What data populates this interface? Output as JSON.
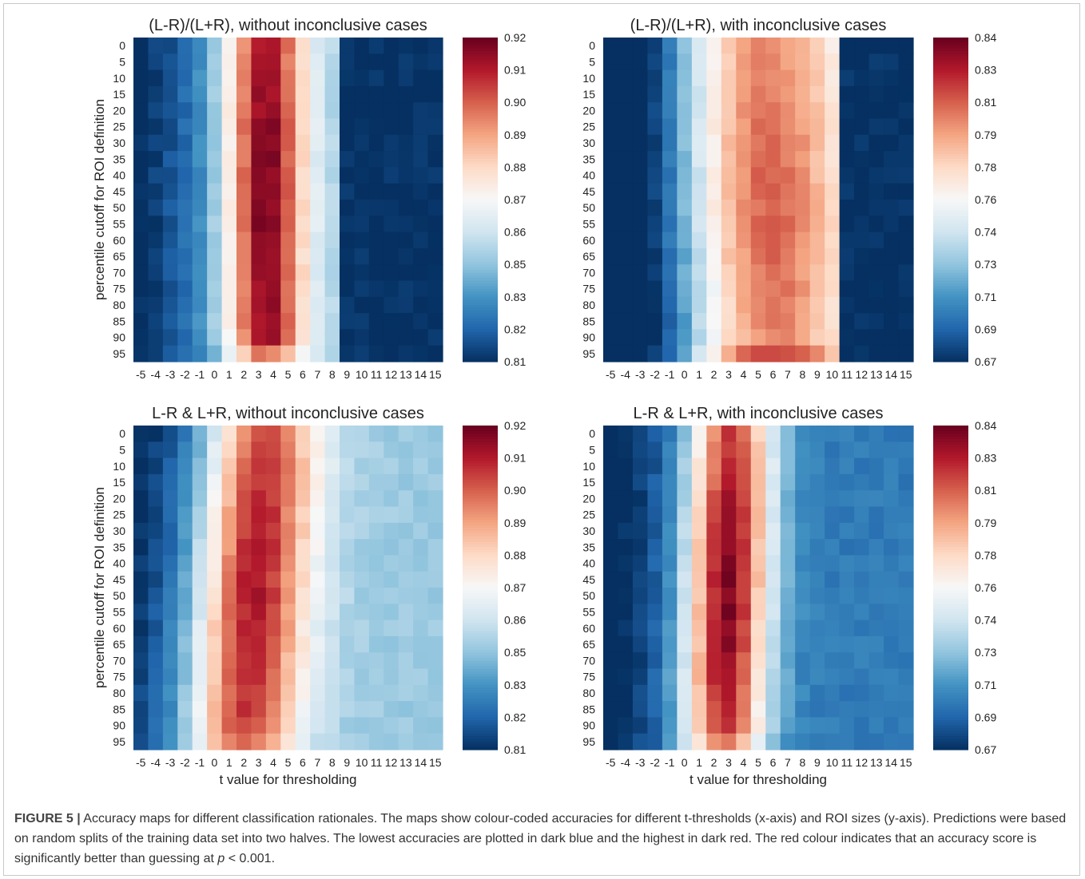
{
  "caption": {
    "label": "FIGURE 5 |",
    "text_before_p": "Accuracy maps for different classification rationales. The maps show colour-coded accuracies for different t-thresholds (x-axis) and ROI sizes (y-axis). Predictions were based on random splits of the training data set into two halves. The lowest accuracies are plotted in dark blue and the highest in dark red. The red colour indicates that an accuracy score is significantly better than guessing at",
    "p_symbol": "p",
    "text_after_p": " < 0.001."
  },
  "colors": {
    "diverging_map": [
      "#053061",
      "#2166ac",
      "#4393c3",
      "#92c5de",
      "#d1e5f0",
      "#f7f7f7",
      "#fddbc7",
      "#f4a582",
      "#d6604d",
      "#b2182b",
      "#67001f"
    ],
    "frame_border": "#c9c9c9"
  },
  "chart_data": [
    {
      "type": "heatmap",
      "title": "(L-R)/(L+R), without inconclusive cases",
      "xlabel": "",
      "ylabel": "percentile cutoff for ROI definition",
      "x": [
        -5,
        -4,
        -3,
        -2,
        -1,
        0,
        1,
        2,
        3,
        4,
        5,
        6,
        7,
        8,
        9,
        10,
        11,
        12,
        13,
        14,
        15
      ],
      "y": [
        0,
        5,
        10,
        15,
        20,
        25,
        30,
        35,
        40,
        45,
        50,
        55,
        60,
        65,
        70,
        75,
        80,
        85,
        90,
        95
      ],
      "x_tick_labels": [
        "-5",
        "-4",
        "-3",
        "-2",
        "-1",
        "0",
        "1",
        "2",
        "3",
        "4",
        "5",
        "6",
        "7",
        "8",
        "9",
        "10",
        "11",
        "12",
        "13",
        "14",
        "15"
      ],
      "y_tick_labels": [
        "0",
        "5",
        "10",
        "15",
        "20",
        "25",
        "30",
        "35",
        "40",
        "45",
        "50",
        "55",
        "60",
        "65",
        "70",
        "75",
        "80",
        "85",
        "90",
        "95"
      ],
      "colorbar_ticks": [
        "0.92",
        "0.91",
        "0.90",
        "0.89",
        "0.88",
        "0.87",
        "0.86",
        "0.85",
        "0.83",
        "0.82",
        "0.81"
      ],
      "vmin": 0.81,
      "vmax": 0.92,
      "pattern": {
        "peak_t_top": 3.5,
        "peak_t_bottom": 3.5,
        "width": 1.9,
        "peak_value": 0.912,
        "peak_row_boost": 0.006,
        "base_left": 0.835,
        "left_slope": 0.004,
        "base_right": 0.845,
        "cutoff_t": 8.5,
        "cutoff_value": 0.81,
        "last_row_peak": 0.895,
        "last_row_cutoff": 8.5
      }
    },
    {
      "type": "heatmap",
      "title": "(L-R)/(L+R), with inconclusive cases",
      "xlabel": "",
      "ylabel": "",
      "x": [
        -5,
        -4,
        -3,
        -2,
        -1,
        0,
        1,
        2,
        3,
        4,
        5,
        6,
        7,
        8,
        9,
        10,
        11,
        12,
        13,
        14,
        15
      ],
      "y": [
        0,
        5,
        10,
        15,
        20,
        25,
        30,
        35,
        40,
        45,
        50,
        55,
        60,
        65,
        70,
        75,
        80,
        85,
        90,
        95
      ],
      "x_tick_labels": [
        "-5",
        "-4",
        "-3",
        "-2",
        "-1",
        "0",
        "1",
        "2",
        "3",
        "4",
        "5",
        "6",
        "7",
        "8",
        "9",
        "10",
        "11",
        "12",
        "13",
        "14",
        "15"
      ],
      "y_tick_labels": [
        "0",
        "5",
        "10",
        "15",
        "20",
        "25",
        "30",
        "35",
        "40",
        "45",
        "50",
        "55",
        "60",
        "65",
        "70",
        "75",
        "80",
        "85",
        "90",
        "95"
      ],
      "colorbar_ticks": [
        "0.84",
        "0.83",
        "0.81",
        "0.79",
        "0.78",
        "0.76",
        "0.74",
        "0.73",
        "0.71",
        "0.69",
        "0.67"
      ],
      "vmin": 0.67,
      "vmax": 0.84,
      "pattern": {
        "peak_t_top": 5.5,
        "peak_t_bottom": 6.0,
        "width": 4.2,
        "peak_value": 0.795,
        "peak_row_boost": 0.01,
        "base_left": 0.68,
        "left_slope": 0.006,
        "base_right": 0.72,
        "cutoff_t": 11.0,
        "cutoff_value": 0.67,
        "last_row_peak": 0.815,
        "last_row_cutoff": 10.5
      }
    },
    {
      "type": "heatmap",
      "title": "L-R & L+R, without inconclusive cases",
      "xlabel": "t value for thresholding",
      "ylabel": "percentile cutoff for ROI definition",
      "x": [
        -5,
        -4,
        -3,
        -2,
        -1,
        0,
        1,
        2,
        3,
        4,
        5,
        6,
        7,
        8,
        9,
        10,
        11,
        12,
        13,
        14,
        15
      ],
      "y": [
        0,
        5,
        10,
        15,
        20,
        25,
        30,
        35,
        40,
        45,
        50,
        55,
        60,
        65,
        70,
        75,
        80,
        85,
        90,
        95
      ],
      "x_tick_labels": [
        "-5",
        "-4",
        "-3",
        "-2",
        "-1",
        "0",
        "1",
        "2",
        "3",
        "4",
        "5",
        "6",
        "7",
        "8",
        "9",
        "10",
        "11",
        "12",
        "13",
        "14",
        "15"
      ],
      "y_tick_labels": [
        "0",
        "5",
        "10",
        "15",
        "20",
        "25",
        "30",
        "35",
        "40",
        "45",
        "50",
        "55",
        "60",
        "65",
        "70",
        "75",
        "80",
        "85",
        "90",
        "95"
      ],
      "colorbar_ticks": [
        "0.92",
        "0.91",
        "0.90",
        "0.89",
        "0.88",
        "0.87",
        "0.86",
        "0.85",
        "0.83",
        "0.82",
        "0.81"
      ],
      "vmin": 0.81,
      "vmax": 0.92,
      "pattern": {
        "peak_t_top": 3.5,
        "peak_t_bottom": 2.0,
        "width": 2.6,
        "peak_value": 0.902,
        "peak_row_boost": 0.008,
        "base_left": 0.828,
        "left_slope": 0.003,
        "base_right": 0.845,
        "cutoff_t": null,
        "cutoff_value": null,
        "last_row_peak": 0.897,
        "last_row_cutoff": null
      }
    },
    {
      "type": "heatmap",
      "title": "L-R & L+R, with inconclusive cases",
      "xlabel": "t value for thresholding",
      "ylabel": "",
      "x": [
        -5,
        -4,
        -3,
        -2,
        -1,
        0,
        1,
        2,
        3,
        4,
        5,
        6,
        7,
        8,
        9,
        10,
        11,
        12,
        13,
        14,
        15
      ],
      "y": [
        0,
        5,
        10,
        15,
        20,
        25,
        30,
        35,
        40,
        45,
        50,
        55,
        60,
        65,
        70,
        75,
        80,
        85,
        90,
        95
      ],
      "x_tick_labels": [
        "-5",
        "-4",
        "-3",
        "-2",
        "-1",
        "0",
        "1",
        "2",
        "3",
        "4",
        "5",
        "6",
        "7",
        "8",
        "9",
        "10",
        "11",
        "12",
        "13",
        "14",
        "15"
      ],
      "y_tick_labels": [
        "0",
        "5",
        "10",
        "15",
        "20",
        "25",
        "30",
        "35",
        "40",
        "45",
        "50",
        "55",
        "60",
        "65",
        "70",
        "75",
        "80",
        "85",
        "90",
        "95"
      ],
      "colorbar_ticks": [
        "0.84",
        "0.83",
        "0.81",
        "0.79",
        "0.78",
        "0.76",
        "0.74",
        "0.73",
        "0.71",
        "0.69",
        "0.67"
      ],
      "vmin": 0.67,
      "vmax": 0.84,
      "pattern": {
        "peak_t_top": 3.2,
        "peak_t_bottom": 2.7,
        "width": 2.0,
        "peak_value": 0.815,
        "peak_row_boost": 0.02,
        "base_left": 0.69,
        "left_slope": 0.004,
        "base_right": 0.695,
        "cutoff_t": null,
        "cutoff_value": null,
        "last_row_peak": 0.8,
        "last_row_cutoff": null
      }
    }
  ]
}
